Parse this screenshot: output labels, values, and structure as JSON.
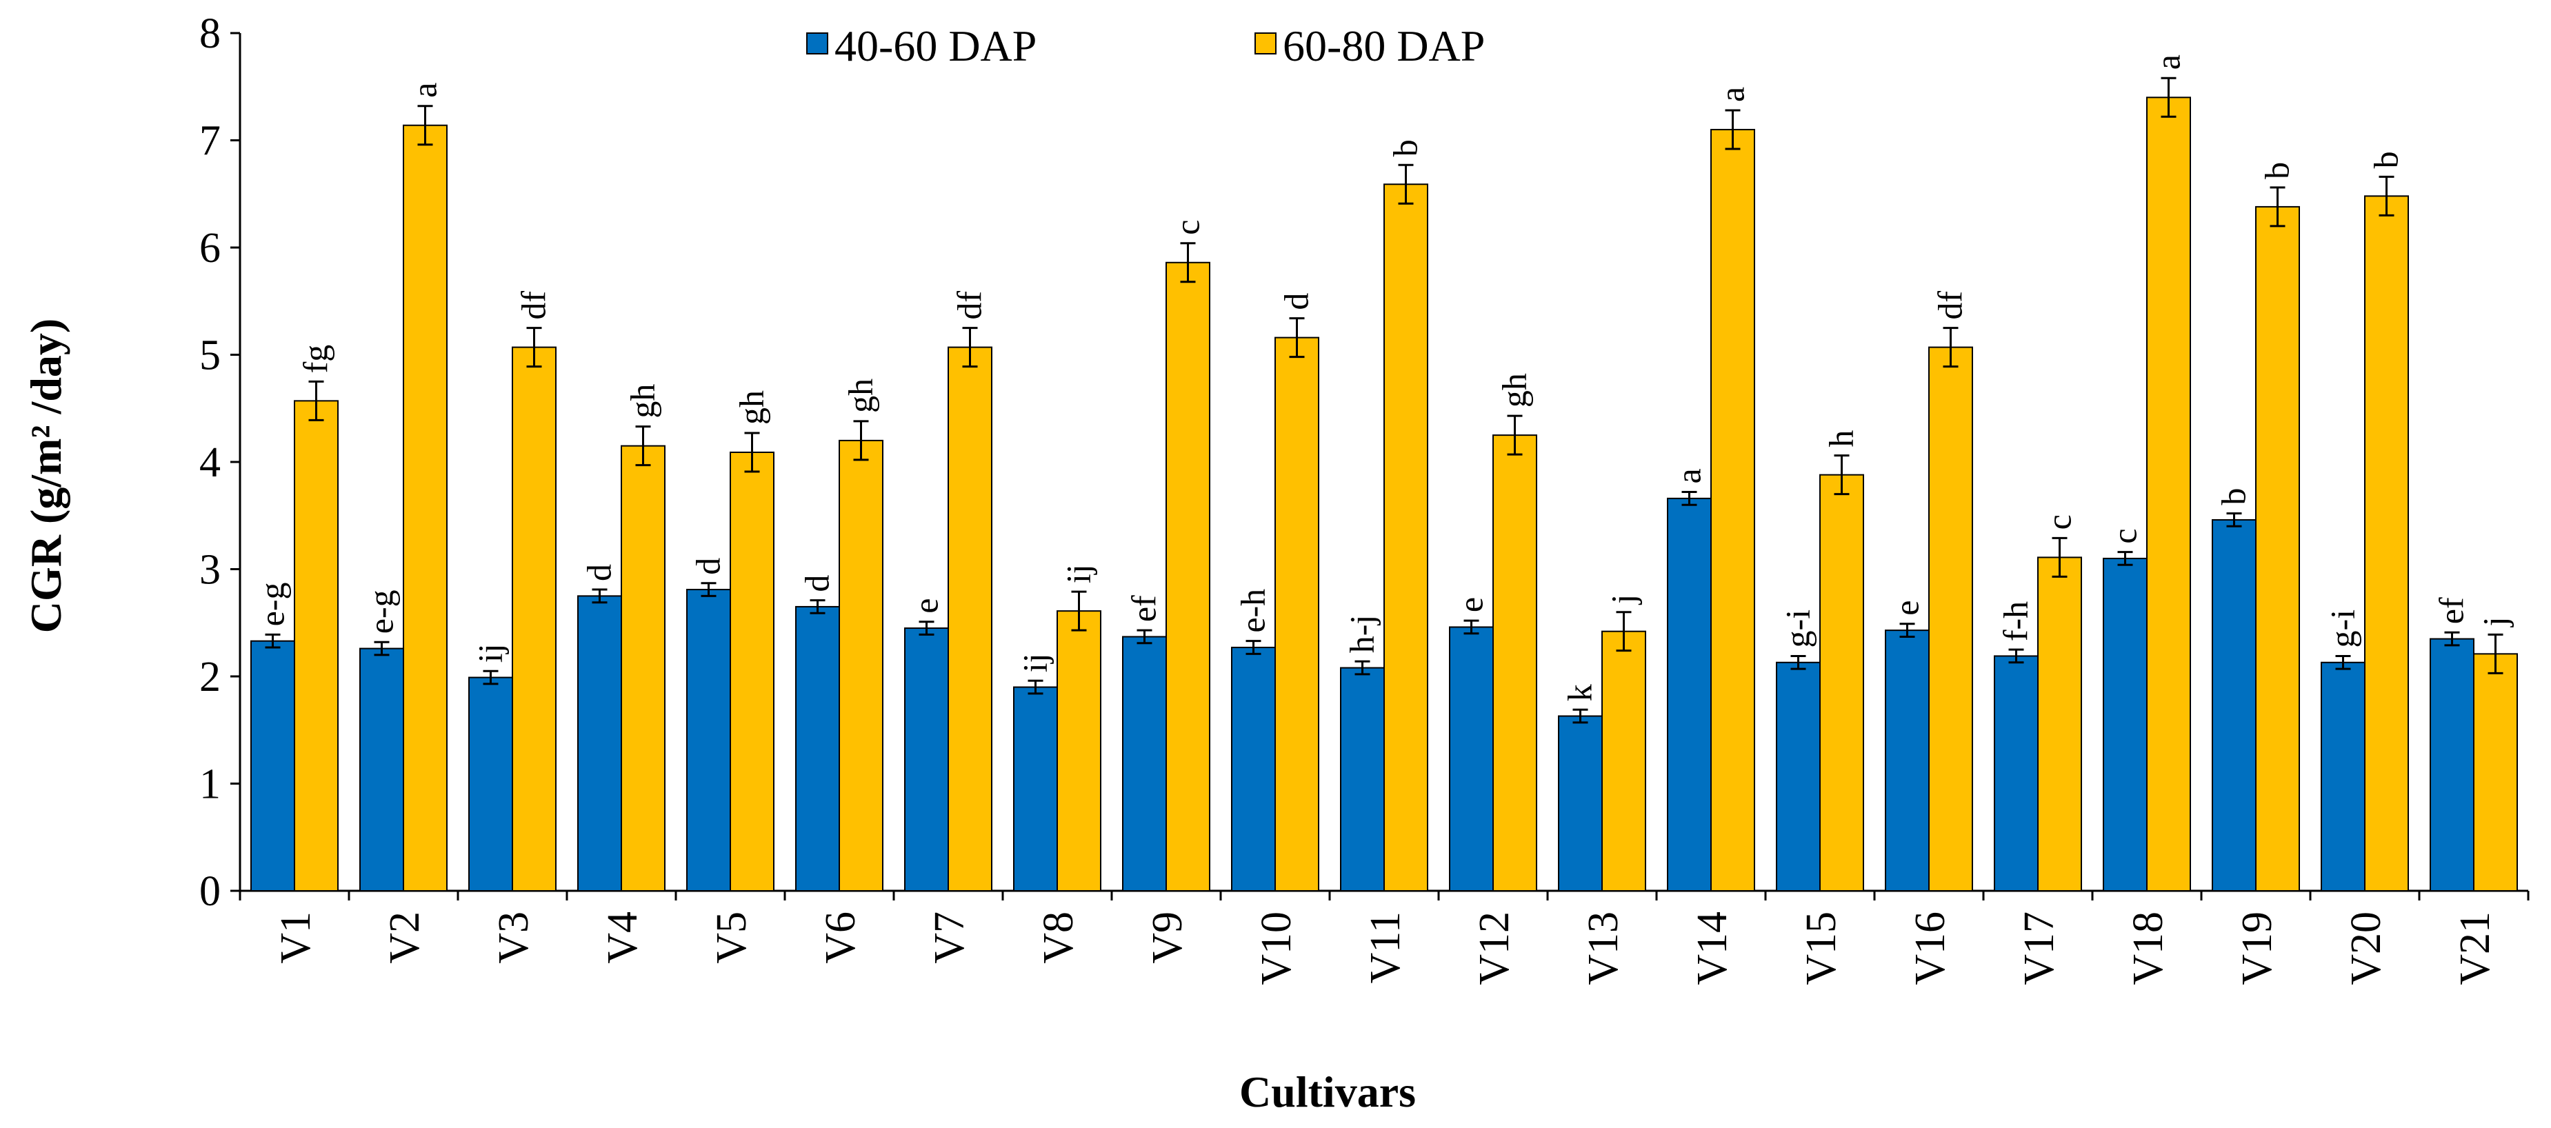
{
  "chart_data": {
    "type": "bar",
    "ylabel": "CGR (g/m² /day)",
    "xlabel": "Cultivars",
    "ylim": [
      0,
      8
    ],
    "yticks": [
      0,
      1,
      2,
      3,
      4,
      5,
      6,
      7,
      8
    ],
    "legend_position": "top-center",
    "categories": [
      "V1",
      "V2",
      "V3",
      "V4",
      "V5",
      "V6",
      "V7",
      "V8",
      "V9",
      "V10",
      "V11",
      "V12",
      "V13",
      "V14",
      "V15",
      "V16",
      "V17",
      "V18",
      "V19",
      "V20",
      "V21"
    ],
    "series": [
      {
        "name": "40-60 DAP",
        "color": "#0070C0",
        "values": [
          2.33,
          2.26,
          1.99,
          2.75,
          2.81,
          2.65,
          2.45,
          1.9,
          2.37,
          2.27,
          2.08,
          2.46,
          1.63,
          3.66,
          2.13,
          2.43,
          2.19,
          3.1,
          3.46,
          2.13,
          2.35
        ],
        "errors": [
          0.06,
          0.06,
          0.06,
          0.06,
          0.06,
          0.06,
          0.06,
          0.06,
          0.06,
          0.06,
          0.06,
          0.06,
          0.06,
          0.06,
          0.06,
          0.06,
          0.06,
          0.06,
          0.06,
          0.06,
          0.06
        ],
        "labels": [
          "e-g",
          "e-g",
          "ij",
          "d",
          "d",
          "d",
          "e",
          "ij",
          "ef",
          "e-h",
          "h-j",
          "e",
          "k",
          "a",
          "g-i",
          "e",
          "f-h",
          "c",
          "b",
          "g-i",
          "ef"
        ]
      },
      {
        "name": "60-80 DAP",
        "color": "#FFC000",
        "values": [
          4.57,
          7.14,
          5.07,
          4.15,
          4.09,
          4.2,
          5.07,
          2.61,
          5.86,
          5.16,
          6.59,
          4.25,
          2.42,
          7.1,
          3.88,
          5.07,
          3.11,
          7.4,
          6.38,
          6.48,
          2.21
        ],
        "errors": [
          0.18,
          0.18,
          0.18,
          0.18,
          0.18,
          0.18,
          0.18,
          0.18,
          0.18,
          0.18,
          0.18,
          0.18,
          0.18,
          0.18,
          0.18,
          0.18,
          0.18,
          0.18,
          0.18,
          0.18,
          0.18
        ],
        "labels": [
          "fg",
          "a",
          "df",
          "gh",
          "gh",
          "gh",
          "df",
          "ij",
          "c",
          "d",
          "b",
          "gh",
          "j",
          "a",
          "h",
          "df",
          "c",
          "a",
          "b",
          "b",
          "j"
        ]
      }
    ]
  }
}
